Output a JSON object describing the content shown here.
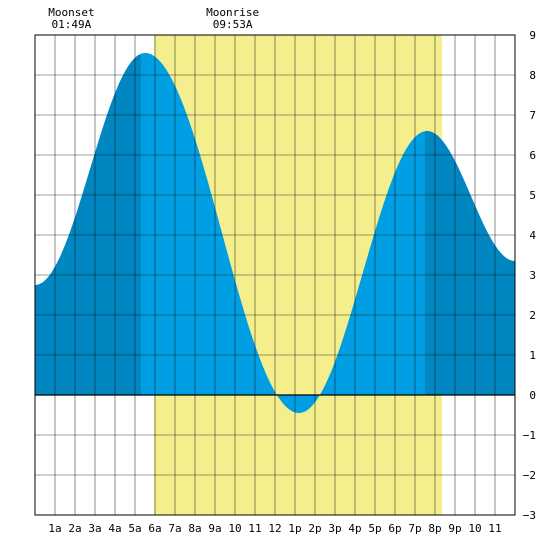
{
  "chart_data": {
    "type": "area",
    "title": "",
    "xlabel": "",
    "ylabel": "",
    "xlim": [
      0,
      24
    ],
    "ylim": [
      -3,
      9
    ],
    "grid": true,
    "x_tick_labels": [
      {
        "x": 1,
        "label": "1a"
      },
      {
        "x": 2,
        "label": "2a"
      },
      {
        "x": 3,
        "label": "3a"
      },
      {
        "x": 4,
        "label": "4a"
      },
      {
        "x": 5,
        "label": "5a"
      },
      {
        "x": 6,
        "label": "6a"
      },
      {
        "x": 7,
        "label": "7a"
      },
      {
        "x": 8,
        "label": "8a"
      },
      {
        "x": 9,
        "label": "9a"
      },
      {
        "x": 10,
        "label": "10"
      },
      {
        "x": 11,
        "label": "11"
      },
      {
        "x": 12,
        "label": "12"
      },
      {
        "x": 13,
        "label": "1p"
      },
      {
        "x": 14,
        "label": "2p"
      },
      {
        "x": 15,
        "label": "3p"
      },
      {
        "x": 16,
        "label": "4p"
      },
      {
        "x": 17,
        "label": "5p"
      },
      {
        "x": 18,
        "label": "6p"
      },
      {
        "x": 19,
        "label": "7p"
      },
      {
        "x": 20,
        "label": "8p"
      },
      {
        "x": 21,
        "label": "9p"
      },
      {
        "x": 22,
        "label": "10"
      },
      {
        "x": 23,
        "label": "11"
      }
    ],
    "y_ticks": [
      9,
      8,
      7,
      6,
      5,
      4,
      3,
      2,
      1,
      0,
      -1,
      -2,
      -3
    ],
    "tide_extremes": [
      {
        "hour": 0.0,
        "height": 2.75
      },
      {
        "hour": 5.5,
        "height": 8.55
      },
      {
        "hour": 13.2,
        "height": -0.45
      },
      {
        "hour": 19.6,
        "height": 6.6
      },
      {
        "hour": 24.0,
        "height": 3.35
      }
    ],
    "daylight_band": [
      5.95,
      20.35
    ],
    "dark_band": [
      5.3,
      19.5
    ],
    "moon_events": [
      {
        "name": "Moonset",
        "time": "01:49A",
        "hour": 1.82
      },
      {
        "name": "Moonrise",
        "time": "09:53A",
        "hour": 9.88
      }
    ],
    "colors": {
      "daylight": "#f4ef8c",
      "tide_day": "#009fe3",
      "tide_night": "#0087c2",
      "grid": "#000000",
      "background": "#ffffff"
    }
  }
}
